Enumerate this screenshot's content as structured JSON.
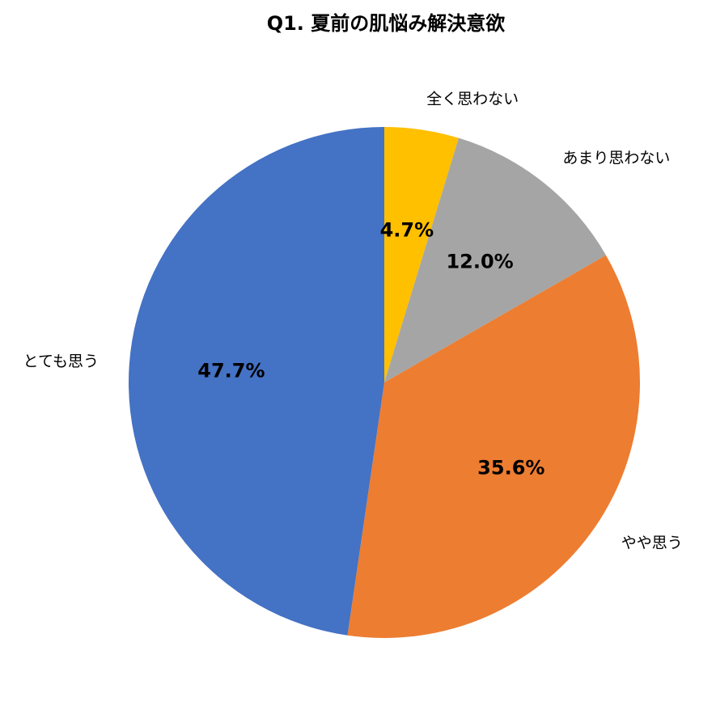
{
  "chart_data": {
    "type": "pie",
    "title": "Q1. 夏前の肌悩み解決意欲",
    "categories": [
      "全く思わない",
      "あまり思わない",
      "やや思う",
      "とても思う"
    ],
    "values": [
      4.7,
      12.0,
      35.6,
      47.7
    ],
    "value_labels": [
      "4.7%",
      "12.0%",
      "35.6%",
      "47.7%"
    ],
    "colors": [
      "#ffc000",
      "#a5a5a5",
      "#ed7d31",
      "#4472c4"
    ]
  }
}
